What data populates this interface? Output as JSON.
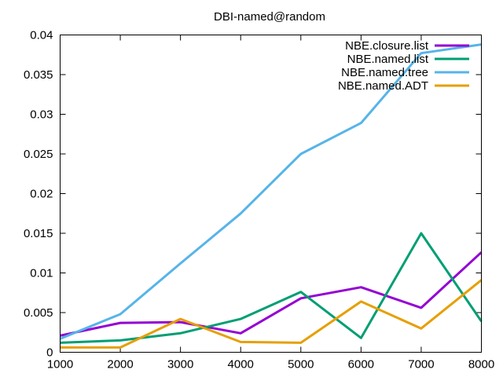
{
  "chart_data": {
    "type": "line",
    "title": "DBI-named@random",
    "xlabel": "",
    "ylabel": "",
    "xlim": [
      1000,
      8000
    ],
    "ylim": [
      0,
      0.04
    ],
    "x_ticks": [
      "1000",
      "2000",
      "3000",
      "4000",
      "5000",
      "6000",
      "7000",
      "8000"
    ],
    "y_ticks": [
      "0",
      "0.005",
      "0.01",
      "0.015",
      "0.02",
      "0.025",
      "0.03",
      "0.035",
      "0.04"
    ],
    "grid": false,
    "legend_position": "top-right",
    "x": [
      1000,
      2000,
      3000,
      4000,
      5000,
      6000,
      7000,
      8000
    ],
    "series": [
      {
        "name": "NBE.closure.list",
        "color": "#9400d3",
        "values": [
          0.0021,
          0.0037,
          0.0038,
          0.0024,
          0.0068,
          0.0082,
          0.0056,
          0.0126
        ]
      },
      {
        "name": "NBE.named.list",
        "color": "#009e73",
        "values": [
          0.0012,
          0.0015,
          0.0024,
          0.0042,
          0.0076,
          0.0018,
          0.015,
          0.0039
        ]
      },
      {
        "name": "NBE.named.tree",
        "color": "#56b4e9",
        "values": [
          0.0017,
          0.0048,
          0.0112,
          0.0175,
          0.025,
          0.0289,
          0.0377,
          0.0388
        ]
      },
      {
        "name": "NBE.named.ADT",
        "color": "#e69f00",
        "values": [
          0.0006,
          0.0006,
          0.0042,
          0.0013,
          0.0012,
          0.0064,
          0.003,
          0.0091
        ]
      }
    ]
  }
}
